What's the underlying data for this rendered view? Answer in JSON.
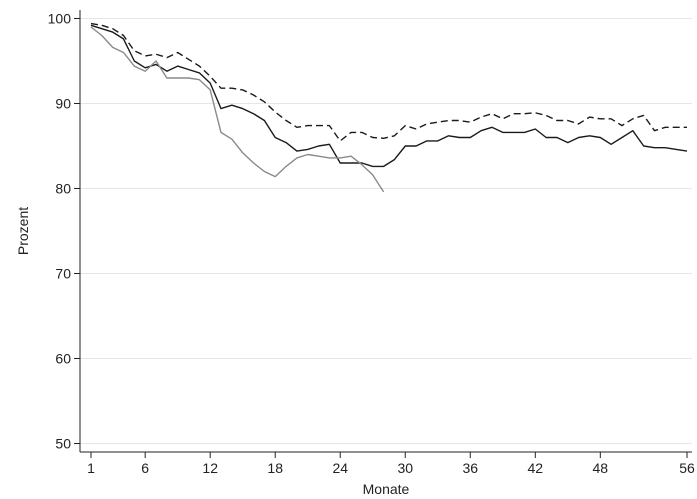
{
  "chart_data": {
    "type": "line",
    "title": "",
    "xlabel": "Monate",
    "ylabel": "Prozent",
    "xlim": [
      1,
      56
    ],
    "ylim": [
      49,
      101
    ],
    "x_ticks": [
      1,
      6,
      12,
      18,
      24,
      30,
      36,
      42,
      48,
      56
    ],
    "y_ticks": [
      50,
      60,
      70,
      80,
      90,
      100
    ],
    "grid": "horizontal",
    "legend": "none",
    "series": [
      {
        "style": "dashed",
        "color": "#1a1a1a",
        "x": [
          1,
          2,
          3,
          4,
          5,
          6,
          7,
          8,
          9,
          10,
          11,
          12,
          13,
          14,
          15,
          16,
          17,
          18,
          19,
          20,
          21,
          22,
          23,
          24,
          25,
          26,
          27,
          28,
          29,
          30,
          31,
          32,
          33,
          34,
          35,
          36,
          37,
          38,
          39,
          40,
          41,
          42,
          43,
          44,
          45,
          46,
          47,
          48,
          49,
          50,
          51,
          52,
          53,
          54,
          55,
          56
        ],
        "values": [
          99.4,
          99.2,
          98.8,
          98.0,
          96.2,
          95.6,
          95.8,
          95.4,
          96.0,
          95.2,
          94.4,
          93.2,
          91.8,
          91.8,
          91.6,
          91.0,
          90.2,
          89.0,
          88.0,
          87.2,
          87.4,
          87.4,
          87.4,
          85.6,
          86.6,
          86.6,
          86.0,
          85.9,
          86.2,
          87.4,
          87.0,
          87.6,
          87.8,
          88.0,
          88.0,
          87.8,
          88.4,
          88.8,
          88.2,
          88.8,
          88.8,
          88.9,
          88.6,
          88.0,
          88.0,
          87.6,
          88.4,
          88.2,
          88.2,
          87.4,
          88.2,
          88.6,
          86.8,
          87.2,
          87.2,
          87.2
        ]
      },
      {
        "style": "solid",
        "color": "#1a1a1a",
        "x": [
          1,
          2,
          3,
          4,
          5,
          6,
          7,
          8,
          9,
          10,
          11,
          12,
          13,
          14,
          15,
          16,
          17,
          18,
          19,
          20,
          21,
          22,
          23,
          24,
          25,
          26,
          27,
          28,
          29,
          30,
          31,
          32,
          33,
          34,
          35,
          36,
          37,
          38,
          39,
          40,
          41,
          42,
          43,
          44,
          45,
          46,
          47,
          48,
          49,
          50,
          51,
          52,
          53,
          54,
          55,
          56
        ],
        "values": [
          99.2,
          98.8,
          98.4,
          97.6,
          95.0,
          94.2,
          94.6,
          93.8,
          94.4,
          94.0,
          93.6,
          92.4,
          89.4,
          89.8,
          89.4,
          88.8,
          88.0,
          86.0,
          85.4,
          84.4,
          84.6,
          85.0,
          85.2,
          83.0,
          83.0,
          83.0,
          82.6,
          82.6,
          83.4,
          85.0,
          85.0,
          85.6,
          85.6,
          86.2,
          86.0,
          86.0,
          86.8,
          87.2,
          86.6,
          86.6,
          86.6,
          87.0,
          86.0,
          86.0,
          85.4,
          86.0,
          86.2,
          86.0,
          85.2,
          86.0,
          86.8,
          85.0,
          84.8,
          84.8,
          84.6,
          84.4
        ]
      },
      {
        "style": "solid",
        "color": "#8a8a8a",
        "x": [
          1,
          2,
          3,
          4,
          5,
          6,
          7,
          8,
          9,
          10,
          11,
          12,
          13,
          14,
          15,
          16,
          17,
          18,
          19,
          20,
          21,
          22,
          23,
          24,
          25,
          26,
          27,
          28
        ],
        "values": [
          99.0,
          98.0,
          96.6,
          96.0,
          94.4,
          93.8,
          95.0,
          93.0,
          93.0,
          93.0,
          92.8,
          91.6,
          86.6,
          85.8,
          84.2,
          83.0,
          82.0,
          81.4,
          82.6,
          83.6,
          84.0,
          83.8,
          83.6,
          83.6,
          83.8,
          82.8,
          81.6,
          79.6
        ]
      }
    ]
  }
}
